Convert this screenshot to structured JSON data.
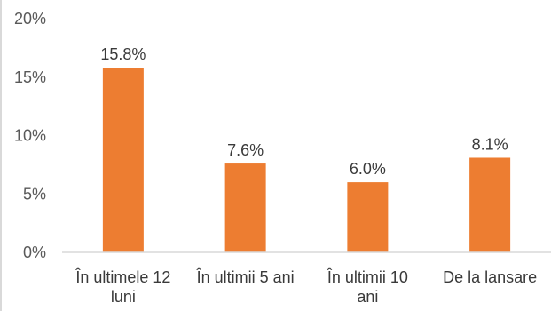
{
  "chart_data": {
    "type": "bar",
    "title": "",
    "xlabel": "",
    "ylabel": "",
    "categories": [
      [
        "În ultimele 12",
        "luni"
      ],
      [
        "În ultimii 5 ani"
      ],
      [
        "În ultimii 10",
        "ani"
      ],
      [
        "De la lansare"
      ]
    ],
    "values": [
      15.8,
      7.6,
      6.0,
      8.1
    ],
    "data_labels": [
      "15.8%",
      "7.6%",
      "6.0%",
      "8.1%"
    ],
    "ylim": [
      0,
      20
    ],
    "y_ticks": [
      0,
      5,
      10,
      15,
      20
    ],
    "y_tick_labels": [
      "0%",
      "5%",
      "10%",
      "15%",
      "20%"
    ],
    "bar_color": "#ED7D31",
    "baseline_color": "#D9D9D9",
    "grid": false,
    "legend": "none"
  }
}
